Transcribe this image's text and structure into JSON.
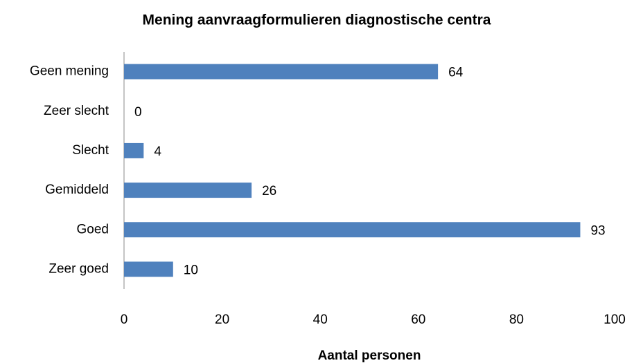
{
  "chart_data": {
    "type": "bar",
    "orientation": "horizontal",
    "title": "Mening aanvraagformulieren diagnostische centra",
    "x_label": "Aantal personen",
    "categories": [
      "Geen mening",
      "Zeer slecht",
      "Slecht",
      "Gemiddeld",
      "Goed",
      "Zeer goed"
    ],
    "values": [
      64,
      0,
      4,
      26,
      93,
      10
    ],
    "color": "#4f81bd",
    "xlim": [
      0,
      100
    ],
    "xticks": [
      0,
      20,
      40,
      60,
      80,
      100
    ],
    "grid": false
  }
}
